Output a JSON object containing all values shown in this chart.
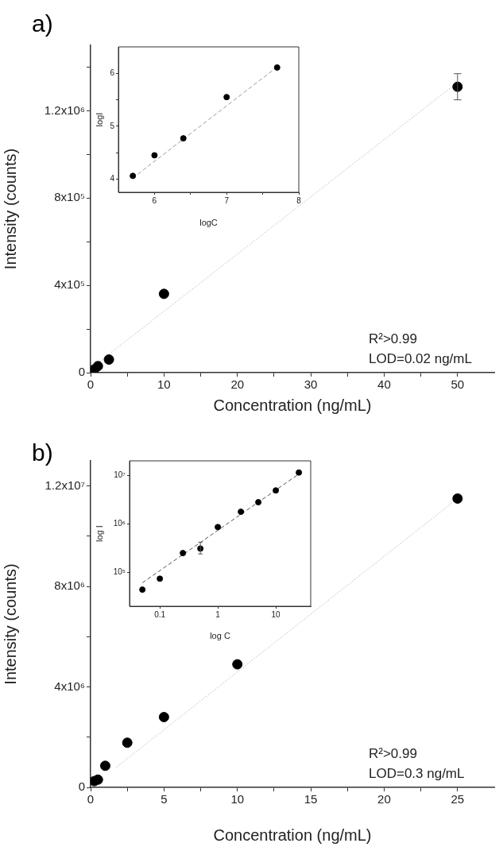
{
  "chart_data": [
    {
      "type": "scatter",
      "title": "a)",
      "xlabel": "Concentration (ng/mL)",
      "ylabel": "Intensity (counts)",
      "x": [
        0.5,
        1,
        2.5,
        10,
        50
      ],
      "xlim": [
        0,
        55
      ],
      "ylim": [
        0,
        1500000
      ],
      "xticks": [
        0,
        {
          "value": 5,
          "label": null
        },
        10,
        {
          "value": 15,
          "label": null
        },
        20,
        {
          "value": 25,
          "label": null
        },
        30,
        {
          "value": 35,
          "label": null
        },
        40,
        {
          "value": 45,
          "label": null
        },
        50
      ],
      "yticks": [
        0,
        {
          "value": 200000,
          "label": null
        },
        {
          "value": 400000,
          "label": "4x10⁵"
        },
        {
          "value": 600000,
          "label": null
        },
        {
          "value": 800000,
          "label": "8x10⁵"
        },
        {
          "value": 1000000,
          "label": null
        },
        {
          "value": 1200000,
          "label": "1.2x10⁶"
        },
        {
          "value": 1400000,
          "label": null
        }
      ],
      "grid": false,
      "legend": false,
      "marker": "circle",
      "annotations": [
        "R²>0.99",
        "LOD=0.02 ng/mL"
      ],
      "series": [
        {
          "type": "scatter",
          "color": "#000000",
          "values": [
            15000,
            30000,
            60000,
            361000,
            1310000
          ],
          "errors": [
            null,
            null,
            null,
            null,
            60000
          ]
        },
        {
          "type": "line",
          "x": [
            1,
            50
          ],
          "color": "#bbbbbb",
          "line_style": "dotted",
          "marker": "none",
          "values": [
            45000,
            1330000
          ]
        }
      ]
    },
    {
      "type": "scatter",
      "xlabel": "logC",
      "ylabel": "logI",
      "x": [
        5.7,
        6,
        6.4,
        7,
        7.7
      ],
      "xlim": [
        5.5,
        8
      ],
      "ylim": [
        3.75,
        6.5
      ],
      "xticks": [
        6,
        {
          "value": 6.5,
          "label": null
        },
        7,
        {
          "value": 7.5,
          "label": null
        },
        8
      ],
      "yticks": [
        4,
        {
          "value": 4.5,
          "label": null
        },
        5,
        {
          "value": 5.5,
          "label": null
        },
        6
      ],
      "grid": false,
      "legend": false,
      "marker": "circle",
      "series": [
        {
          "type": "scatter",
          "color": "#000000",
          "values": [
            4.06,
            4.45,
            4.77,
            5.55,
            6.11
          ]
        },
        {
          "type": "line",
          "x": [
            5.7,
            7.7
          ],
          "color": "#999999",
          "line_style": "dashed",
          "marker": "none",
          "values": [
            4.02,
            6.12
          ]
        }
      ]
    },
    {
      "type": "scatter",
      "title": "b)",
      "xlabel": "Concentration (ng/mL)",
      "ylabel": "Intensity (counts)",
      "x": [
        0.25,
        0.5,
        1,
        2.5,
        5,
        10,
        25
      ],
      "xlim": [
        0,
        27.5
      ],
      "ylim": [
        0,
        13000000
      ],
      "xticks": [
        0,
        {
          "value": 2.5,
          "label": null
        },
        5,
        {
          "value": 7.5,
          "label": null
        },
        10,
        {
          "value": 12.5,
          "label": null
        },
        15,
        {
          "value": 17.5,
          "label": null
        },
        20,
        {
          "value": 22.5,
          "label": null
        },
        25
      ],
      "yticks": [
        0,
        {
          "value": 2000000,
          "label": null
        },
        {
          "value": 4000000,
          "label": "4x10⁶"
        },
        {
          "value": 6000000,
          "label": null
        },
        {
          "value": 8000000,
          "label": "8x10⁶"
        },
        {
          "value": 10000000,
          "label": null
        },
        {
          "value": 12000000,
          "label": "1.2x10⁷"
        }
      ],
      "grid": false,
      "legend": false,
      "marker": "circle",
      "annotations": [
        "R²>0.99",
        "LOD=0.3 ng/mL"
      ],
      "series": [
        {
          "type": "scatter",
          "color": "#000000",
          "values": [
            250000,
            310000,
            860000,
            1780000,
            2800000,
            4900000,
            11500000
          ]
        },
        {
          "type": "line",
          "x": [
            1.75,
            25
          ],
          "color": "#bbbbbb",
          "line_style": "dotted",
          "marker": "none",
          "values": [
            800000,
            11500000
          ]
        }
      ]
    },
    {
      "type": "scatter",
      "xlabel": "log C",
      "ylabel": "log I",
      "log": "xy",
      "x": [
        0.05,
        0.1,
        0.25,
        0.5,
        1,
        2.5,
        5,
        10,
        25
      ],
      "xlim": [
        0.03,
        40
      ],
      "ylim": [
        20000,
        20000000
      ],
      "xticks": [
        0.1,
        1,
        10
      ],
      "yticks": [
        {
          "value": 100000,
          "label": "10⁵"
        },
        {
          "value": 1000000,
          "label": "10⁶"
        },
        {
          "value": 10000000,
          "label": "10⁷"
        }
      ],
      "grid": false,
      "legend": false,
      "marker": "circle",
      "series": [
        {
          "type": "scatter",
          "color": "#000000",
          "values": [
            44000,
            74000,
            250000,
            310000,
            860000,
            1780000,
            2800000,
            4900000,
            11500000
          ],
          "errors": [
            null,
            null,
            null,
            [
              240000,
              420000
            ],
            null,
            null,
            null,
            null,
            null
          ]
        },
        {
          "type": "line",
          "x": [
            0.05,
            25
          ],
          "color": "#555555",
          "line_style": "dashed",
          "marker": "none",
          "values": [
            61000,
            10700000
          ]
        }
      ]
    }
  ]
}
